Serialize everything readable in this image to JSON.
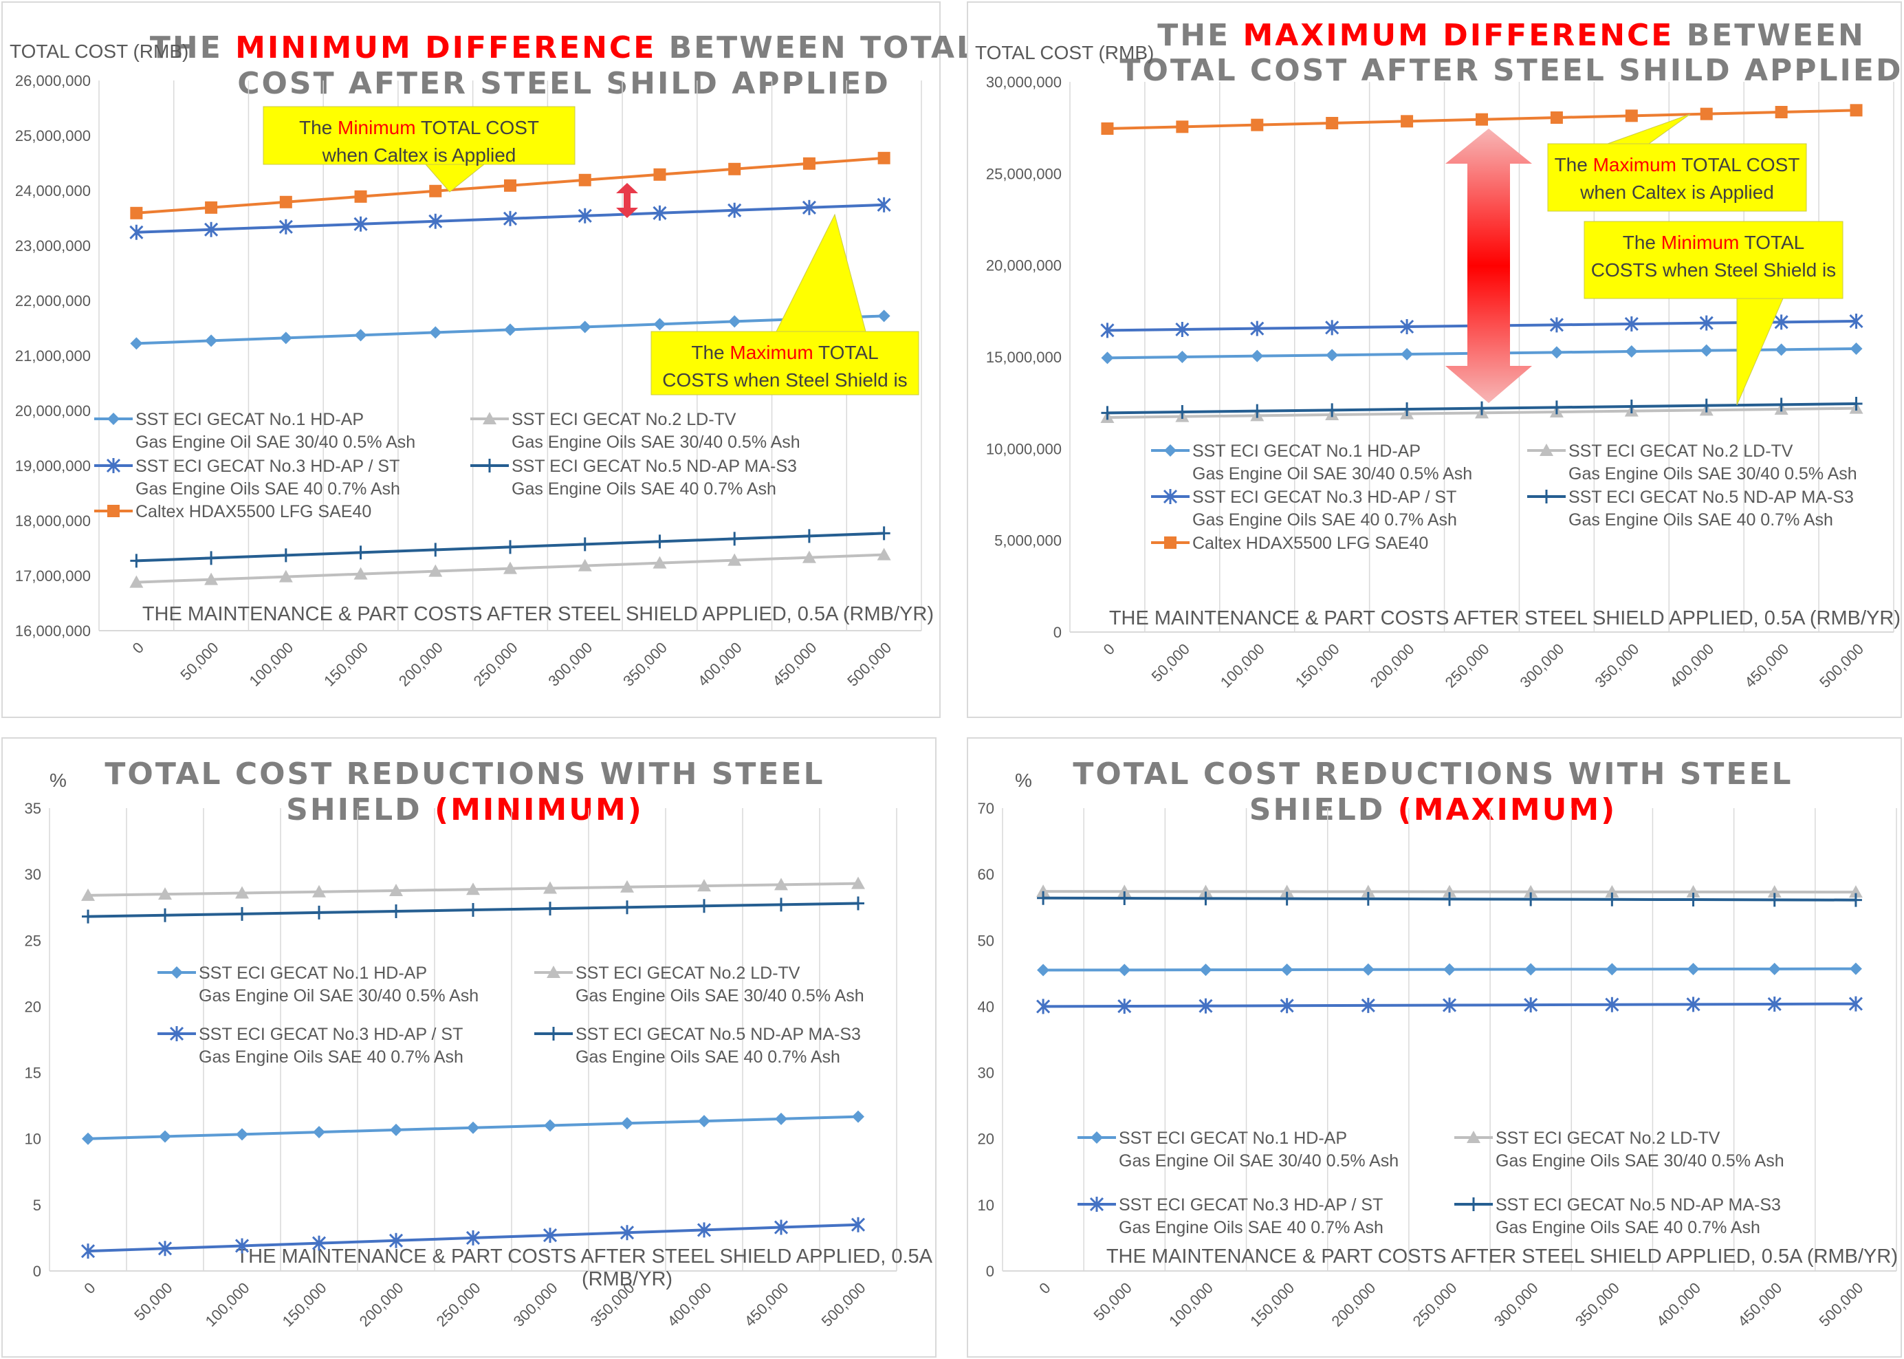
{
  "colors": {
    "no1": "#5b9bd5",
    "no2": "#bfbfbf",
    "no3": "#4472c4",
    "no5": "#255e91",
    "caltex": "#ed7d31",
    "title_gray": "#7f7f7f",
    "highlight_red": "#ff0000",
    "callout_yellow": "#ffff00"
  },
  "series_labels": {
    "no1": [
      "SST ECI GECAT No.1 HD-AP",
      "Gas Engine Oil SAE 30/40 0.5% Ash"
    ],
    "no2": [
      "SST ECI GECAT No.2 LD-TV",
      "Gas Engine Oils SAE 30/40 0.5% Ash"
    ],
    "no3": [
      "SST ECI GECAT No.3 HD-AP / ST",
      "Gas Engine Oils SAE 40 0.7% Ash"
    ],
    "no5": [
      "SST ECI GECAT No.5 ND-AP MA-S3",
      "Gas Engine Oils SAE 40 0.7% Ash"
    ],
    "caltex": [
      "Caltex HDAX5500 LFG SAE40"
    ]
  },
  "x_categories": [
    "0",
    "50,000",
    "100,000",
    "150,000",
    "200,000",
    "250,000",
    "300,000",
    "350,000",
    "400,000",
    "450,000",
    "500,000"
  ],
  "chart_data": [
    {
      "type": "line",
      "title_parts": [
        {
          "text": "THE ",
          "hl": false
        },
        {
          "text": "MINIMUM DIFFERENCE",
          "hl": true
        },
        {
          "text": " BETWEEN TOTAL",
          "hl": false
        }
      ],
      "title_line2": "COST AFTER STEEL SHILD APPLIED",
      "ylabel": "TOTAL COST (RMB)",
      "xlabel": "THE MAINTENANCE & PART COSTS AFTER STEEL SHIELD APPLIED, 0.5A (RMB/YR)",
      "ylim": [
        16000000,
        26000000
      ],
      "yticks": [
        "16,000,000",
        "17,000,000",
        "18,000,000",
        "19,000,000",
        "20,000,000",
        "21,000,000",
        "22,000,000",
        "23,000,000",
        "24,000,000",
        "25,000,000",
        "26,000,000"
      ],
      "series": [
        {
          "key": "no1",
          "marker": "diamond",
          "values": [
            21220000,
            21270000,
            21320000,
            21370000,
            21420000,
            21470000,
            21520000,
            21570000,
            21620000,
            21670000,
            21720000
          ]
        },
        {
          "key": "no2",
          "marker": "triangle",
          "values": [
            16880000,
            16930000,
            16980000,
            17030000,
            17080000,
            17130000,
            17180000,
            17230000,
            17280000,
            17330000,
            17380000
          ]
        },
        {
          "key": "no3",
          "marker": "star",
          "values": [
            23240000,
            23290000,
            23340000,
            23390000,
            23440000,
            23490000,
            23540000,
            23590000,
            23640000,
            23690000,
            23740000
          ]
        },
        {
          "key": "no5",
          "marker": "plus",
          "values": [
            17270000,
            17320000,
            17370000,
            17420000,
            17470000,
            17520000,
            17570000,
            17620000,
            17670000,
            17720000,
            17770000
          ]
        },
        {
          "key": "caltex",
          "marker": "square",
          "values": [
            23590000,
            23690000,
            23790000,
            23890000,
            23990000,
            24090000,
            24190000,
            24290000,
            24390000,
            24490000,
            24590000
          ]
        }
      ],
      "callouts": [
        {
          "parts": [
            {
              "text": "The ",
              "hl": false
            },
            {
              "text": "Minimum",
              "hl": true
            },
            {
              "text": " TOTAL COST",
              "hl": false
            }
          ],
          "line2": "when Caltex is Applied"
        },
        {
          "parts": [
            {
              "text": "The ",
              "hl": false
            },
            {
              "text": "Maximum",
              "hl": true
            },
            {
              "text": " TOTAL",
              "hl": false
            }
          ],
          "line2": "COSTS when Steel Shield is"
        }
      ]
    },
    {
      "type": "line",
      "title_parts": [
        {
          "text": "THE ",
          "hl": false
        },
        {
          "text": "MAXIMUM DIFFERENCE",
          "hl": true
        },
        {
          "text": " BETWEEN",
          "hl": false
        }
      ],
      "title_line2": "TOTAL COST AFTER STEEL SHILD APPLIED",
      "ylabel": "TOTAL COST (RMB)",
      "xlabel": "THE MAINTENANCE & PART COSTS AFTER STEEL SHIELD APPLIED, 0.5A (RMB/YR)",
      "ylim": [
        0,
        30000000
      ],
      "yticks": [
        "0",
        "5,000,000",
        "10,000,000",
        "15,000,000",
        "20,000,000",
        "25,000,000",
        "30,000,000"
      ],
      "series": [
        {
          "key": "no1",
          "marker": "diamond",
          "values": [
            14950000,
            15000000,
            15050000,
            15100000,
            15150000,
            15200000,
            15250000,
            15300000,
            15350000,
            15400000,
            15450000
          ]
        },
        {
          "key": "no2",
          "marker": "triangle",
          "values": [
            11700000,
            11750000,
            11800000,
            11850000,
            11900000,
            11950000,
            12000000,
            12050000,
            12100000,
            12150000,
            12200000
          ]
        },
        {
          "key": "no3",
          "marker": "star",
          "values": [
            16450000,
            16500000,
            16550000,
            16600000,
            16650000,
            16700000,
            16750000,
            16800000,
            16850000,
            16900000,
            16950000
          ]
        },
        {
          "key": "no5",
          "marker": "plus",
          "values": [
            11950000,
            12000000,
            12050000,
            12100000,
            12150000,
            12200000,
            12250000,
            12300000,
            12350000,
            12400000,
            12450000
          ]
        },
        {
          "key": "caltex",
          "marker": "square",
          "values": [
            27450000,
            27550000,
            27650000,
            27750000,
            27850000,
            27950000,
            28050000,
            28150000,
            28250000,
            28350000,
            28450000
          ]
        }
      ],
      "callouts": [
        {
          "parts": [
            {
              "text": "The ",
              "hl": false
            },
            {
              "text": "Maximum",
              "hl": true
            },
            {
              "text": " TOTAL COST",
              "hl": false
            }
          ],
          "line2": "when Caltex is Applied"
        },
        {
          "parts": [
            {
              "text": "The ",
              "hl": false
            },
            {
              "text": "Minimum",
              "hl": true
            },
            {
              "text": " TOTAL",
              "hl": false
            }
          ],
          "line2": "COSTS when Steel Shield is"
        }
      ]
    },
    {
      "type": "line",
      "title_parts": [
        {
          "text": "TOTAL COST REDUCTIONS WITH STEEL",
          "hl": false
        }
      ],
      "title_line2_parts": [
        {
          "text": "SHIELD ",
          "hl": false
        },
        {
          "text": "(MINIMUM)",
          "hl": true
        }
      ],
      "ylabel": "%",
      "xlabel_lines": [
        "THE MAINTENANCE & PART COSTS AFTER STEEL SHIELD APPLIED, 0.5A",
        "(RMB/YR)"
      ],
      "ylim": [
        0,
        35
      ],
      "yticks": [
        "0",
        "5",
        "10",
        "15",
        "20",
        "25",
        "30",
        "35"
      ],
      "series": [
        {
          "key": "no1",
          "marker": "diamond",
          "values": [
            10.0,
            10.17,
            10.33,
            10.5,
            10.67,
            10.83,
            11.0,
            11.17,
            11.33,
            11.5,
            11.67
          ]
        },
        {
          "key": "no2",
          "marker": "triangle",
          "values": [
            28.4,
            28.49,
            28.58,
            28.67,
            28.76,
            28.85,
            28.94,
            29.03,
            29.12,
            29.21,
            29.3
          ]
        },
        {
          "key": "no3",
          "marker": "star",
          "values": [
            1.5,
            1.7,
            1.9,
            2.1,
            2.3,
            2.5,
            2.7,
            2.9,
            3.1,
            3.3,
            3.5
          ]
        },
        {
          "key": "no5",
          "marker": "plus",
          "values": [
            26.8,
            26.9,
            27.0,
            27.1,
            27.2,
            27.3,
            27.4,
            27.5,
            27.6,
            27.7,
            27.8
          ]
        }
      ]
    },
    {
      "type": "line",
      "title_parts": [
        {
          "text": "TOTAL COST REDUCTIONS WITH STEEL",
          "hl": false
        }
      ],
      "title_line2_parts": [
        {
          "text": "SHIELD ",
          "hl": false
        },
        {
          "text": "(MAXIMUM)",
          "hl": true
        }
      ],
      "ylabel": "%",
      "xlabel": "THE MAINTENANCE & PART COSTS AFTER STEEL SHIELD APPLIED, 0.5A (RMB/YR)",
      "ylim": [
        0,
        70
      ],
      "yticks": [
        "0",
        "10",
        "20",
        "30",
        "40",
        "50",
        "60",
        "70"
      ],
      "series": [
        {
          "key": "no1",
          "marker": "diamond",
          "values": [
            45.5,
            45.52,
            45.54,
            45.56,
            45.58,
            45.6,
            45.62,
            45.64,
            45.66,
            45.68,
            45.7
          ]
        },
        {
          "key": "no2",
          "marker": "triangle",
          "values": [
            57.4,
            57.39,
            57.38,
            57.37,
            57.36,
            57.35,
            57.34,
            57.33,
            57.32,
            57.31,
            57.3
          ]
        },
        {
          "key": "no3",
          "marker": "star",
          "values": [
            40.0,
            40.04,
            40.08,
            40.12,
            40.16,
            40.2,
            40.24,
            40.28,
            40.32,
            40.36,
            40.4
          ]
        },
        {
          "key": "no5",
          "marker": "plus",
          "values": [
            56.4,
            56.37,
            56.34,
            56.31,
            56.28,
            56.25,
            56.22,
            56.19,
            56.16,
            56.13,
            56.1
          ]
        }
      ]
    }
  ]
}
